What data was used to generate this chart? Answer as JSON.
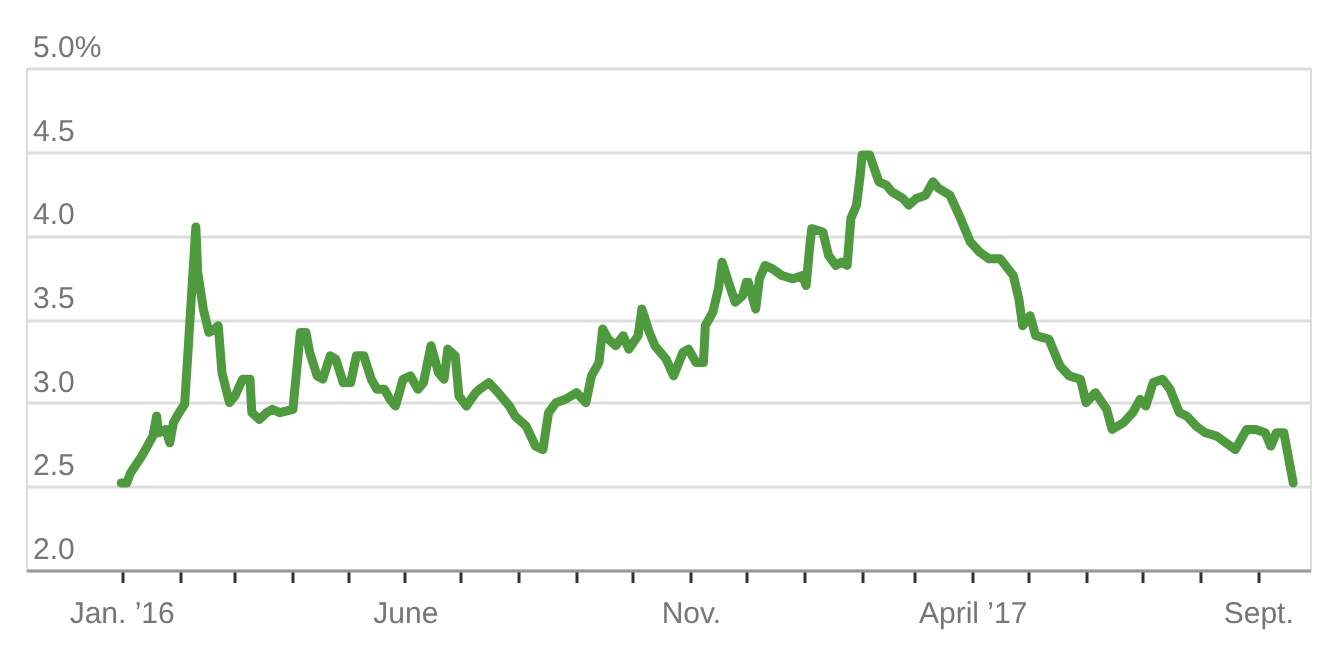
{
  "chart_data": {
    "type": "line",
    "series": [
      {
        "color": "#4f9a3f",
        "x": [
          "2016-01-01",
          "2016-01-04",
          "2016-01-06",
          "2016-01-12",
          "2016-01-18",
          "2016-01-20",
          "2016-01-21",
          "2016-01-25",
          "2016-01-27",
          "2016-01-29",
          "2016-02-01",
          "2016-02-04",
          "2016-02-06",
          "2016-02-08",
          "2016-02-10",
          "2016-02-11",
          "2016-02-14",
          "2016-02-17",
          "2016-02-20",
          "2016-02-22",
          "2016-02-24",
          "2016-02-28",
          "2016-03-02",
          "2016-03-06",
          "2016-03-10",
          "2016-03-11",
          "2016-03-15",
          "2016-03-19",
          "2016-03-22",
          "2016-03-26",
          "2016-04-02",
          "2016-04-06",
          "2016-04-09",
          "2016-04-11",
          "2016-04-15",
          "2016-04-18",
          "2016-04-22",
          "2016-04-25",
          "2016-04-29",
          "2016-05-03",
          "2016-05-06",
          "2016-05-10",
          "2016-05-14",
          "2016-05-17",
          "2016-05-21",
          "2016-05-24",
          "2016-05-27",
          "2016-05-31",
          "2016-06-04",
          "2016-06-08",
          "2016-06-11",
          "2016-06-15",
          "2016-06-19",
          "2016-06-22",
          "2016-06-24",
          "2016-06-28",
          "2016-06-30",
          "2016-07-04",
          "2016-07-09",
          "2016-07-11",
          "2016-07-16",
          "2016-07-21",
          "2016-07-27",
          "2016-07-30",
          "2016-08-05",
          "2016-08-10",
          "2016-08-14",
          "2016-08-17",
          "2016-08-21",
          "2016-08-26",
          "2016-09-01",
          "2016-09-06",
          "2016-09-09",
          "2016-09-13",
          "2016-09-15",
          "2016-09-18",
          "2016-09-22",
          "2016-09-26",
          "2016-09-29",
          "2016-10-04",
          "2016-10-06",
          "2016-10-10",
          "2016-10-13",
          "2016-10-19",
          "2016-10-23",
          "2016-10-28",
          "2016-10-31",
          "2016-11-04",
          "2016-11-08",
          "2016-11-09",
          "2016-11-13",
          "2016-11-16",
          "2016-11-18",
          "2016-11-22",
          "2016-11-25",
          "2016-11-29",
          "2016-12-01",
          "2016-12-02",
          "2016-12-06",
          "2016-12-08",
          "2016-12-11",
          "2016-12-15",
          "2016-12-20",
          "2016-12-26",
          "2016-12-31",
          "2017-01-02",
          "2017-01-04",
          "2017-01-05",
          "2017-01-11",
          "2017-01-14",
          "2017-01-18",
          "2017-01-21",
          "2017-01-24",
          "2017-01-26",
          "2017-01-29",
          "2017-01-31",
          "2017-02-01",
          "2017-02-05",
          "2017-02-10",
          "2017-02-14",
          "2017-02-17",
          "2017-02-23",
          "2017-02-26",
          "2017-03-02",
          "2017-03-07",
          "2017-03-11",
          "2017-03-14",
          "2017-03-20",
          "2017-03-25",
          "2017-03-31",
          "2017-04-05",
          "2017-04-10",
          "2017-04-16",
          "2017-04-23",
          "2017-04-26",
          "2017-04-28",
          "2017-05-02",
          "2017-05-05",
          "2017-05-12",
          "2017-05-18",
          "2017-05-23",
          "2017-05-29",
          "2017-06-01",
          "2017-06-06",
          "2017-06-12",
          "2017-06-15",
          "2017-06-21",
          "2017-06-26",
          "2017-06-30",
          "2017-07-03",
          "2017-07-07",
          "2017-07-12",
          "2017-07-16",
          "2017-07-21",
          "2017-07-25",
          "2017-07-30",
          "2017-08-04",
          "2017-08-10",
          "2017-08-15",
          "2017-08-20",
          "2017-08-26",
          "2017-08-31",
          "2017-09-05",
          "2017-09-08",
          "2017-09-11",
          "2017-09-15",
          "2017-09-20"
        ],
        "values": [
          2.52,
          2.52,
          2.58,
          2.68,
          2.8,
          2.92,
          2.82,
          2.84,
          2.76,
          2.88,
          2.94,
          2.99,
          3.34,
          3.7,
          4.05,
          3.78,
          3.56,
          3.42,
          3.44,
          3.46,
          3.18,
          3.0,
          3.04,
          3.14,
          3.14,
          2.94,
          2.9,
          2.94,
          2.96,
          2.94,
          2.96,
          3.42,
          3.42,
          3.3,
          3.16,
          3.14,
          3.28,
          3.26,
          3.12,
          3.12,
          3.28,
          3.28,
          3.14,
          3.08,
          3.08,
          3.02,
          2.98,
          3.14,
          3.16,
          3.08,
          3.12,
          3.34,
          3.18,
          3.14,
          3.32,
          3.28,
          3.04,
          2.98,
          3.06,
          3.08,
          3.12,
          3.06,
          2.98,
          2.92,
          2.86,
          2.74,
          2.72,
          2.94,
          3.0,
          3.02,
          3.06,
          3.0,
          3.16,
          3.24,
          3.44,
          3.38,
          3.34,
          3.4,
          3.32,
          3.4,
          3.56,
          3.42,
          3.34,
          3.26,
          3.16,
          3.3,
          3.32,
          3.24,
          3.24,
          3.46,
          3.54,
          3.68,
          3.84,
          3.7,
          3.6,
          3.64,
          3.72,
          3.72,
          3.56,
          3.74,
          3.82,
          3.8,
          3.76,
          3.74,
          3.76,
          3.7,
          3.94,
          4.04,
          4.02,
          3.88,
          3.82,
          3.84,
          3.82,
          4.1,
          4.18,
          4.36,
          4.48,
          4.48,
          4.32,
          4.3,
          4.26,
          4.22,
          4.18,
          4.22,
          4.24,
          4.32,
          4.28,
          4.24,
          4.12,
          3.96,
          3.9,
          3.86,
          3.86,
          3.76,
          3.62,
          3.46,
          3.52,
          3.4,
          3.38,
          3.22,
          3.16,
          3.14,
          3.0,
          3.06,
          2.96,
          2.84,
          2.88,
          2.94,
          3.02,
          2.98,
          3.12,
          3.14,
          3.08,
          2.94,
          2.92,
          2.86,
          2.82,
          2.8,
          2.76,
          2.72,
          2.84,
          2.84,
          2.82,
          2.74,
          2.82,
          2.82,
          2.52
        ]
      }
    ],
    "xlim": [
      "2015-11-11",
      "2017-09-29"
    ],
    "xticks": [
      {
        "value": "2016-01-01",
        "label": "Jan. ’16"
      },
      {
        "value": "2016-02-01",
        "label": null
      },
      {
        "value": "2016-03-01",
        "label": null
      },
      {
        "value": "2016-04-01",
        "label": null
      },
      {
        "value": "2016-05-01",
        "label": null
      },
      {
        "value": "2016-06-01",
        "label": "June"
      },
      {
        "value": "2016-07-01",
        "label": null
      },
      {
        "value": "2016-08-01",
        "label": null
      },
      {
        "value": "2016-09-01",
        "label": null
      },
      {
        "value": "2016-10-01",
        "label": null
      },
      {
        "value": "2016-11-01",
        "label": "Nov."
      },
      {
        "value": "2016-12-01",
        "label": null
      },
      {
        "value": "2017-01-01",
        "label": null
      },
      {
        "value": "2017-02-01",
        "label": null
      },
      {
        "value": "2017-03-01",
        "label": null
      },
      {
        "value": "2017-04-01",
        "label": "April ’17"
      },
      {
        "value": "2017-05-01",
        "label": null
      },
      {
        "value": "2017-06-01",
        "label": null
      },
      {
        "value": "2017-07-01",
        "label": null
      },
      {
        "value": "2017-08-01",
        "label": null
      },
      {
        "value": "2017-09-01",
        "label": "Sept."
      }
    ],
    "ylim": [
      2,
      5
    ],
    "yticks": [
      {
        "value": 2,
        "label": "2.0"
      },
      {
        "value": 2.5,
        "label": "2.5"
      },
      {
        "value": 3,
        "label": "3.0"
      },
      {
        "value": 3.5,
        "label": "3.5"
      },
      {
        "value": 4,
        "label": "4.0"
      },
      {
        "value": 4.5,
        "label": "4.5"
      },
      {
        "value": 5,
        "label": "5.0%"
      }
    ],
    "grid": "y",
    "legend": false,
    "marker": "none",
    "line_style": "solid"
  }
}
